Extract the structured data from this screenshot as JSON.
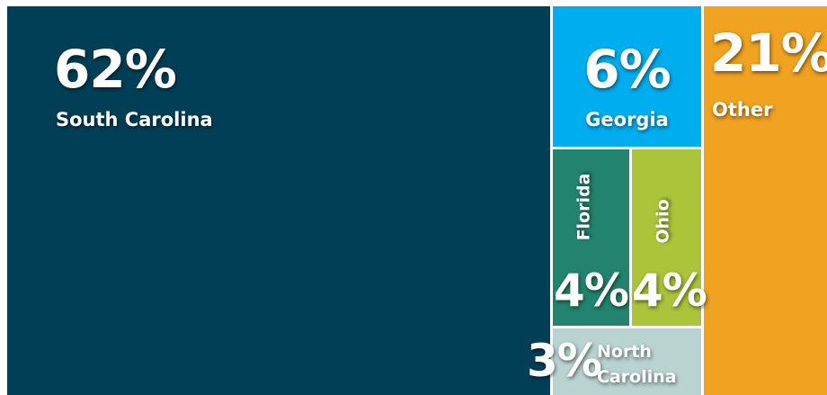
{
  "chart_data": {
    "type": "treemap",
    "categories": [
      "South Carolina",
      "Georgia",
      "Florida",
      "Ohio",
      "North Carolina",
      "Other"
    ],
    "values": [
      62,
      6,
      4,
      4,
      3,
      21
    ],
    "value_labels": [
      "62%",
      "6%",
      "4%",
      "4%",
      "3%",
      "21%"
    ],
    "colors": [
      "#003f56",
      "#00aeef",
      "#22846e",
      "#acc43a",
      "#b9d3d1",
      "#f0a221"
    ]
  }
}
